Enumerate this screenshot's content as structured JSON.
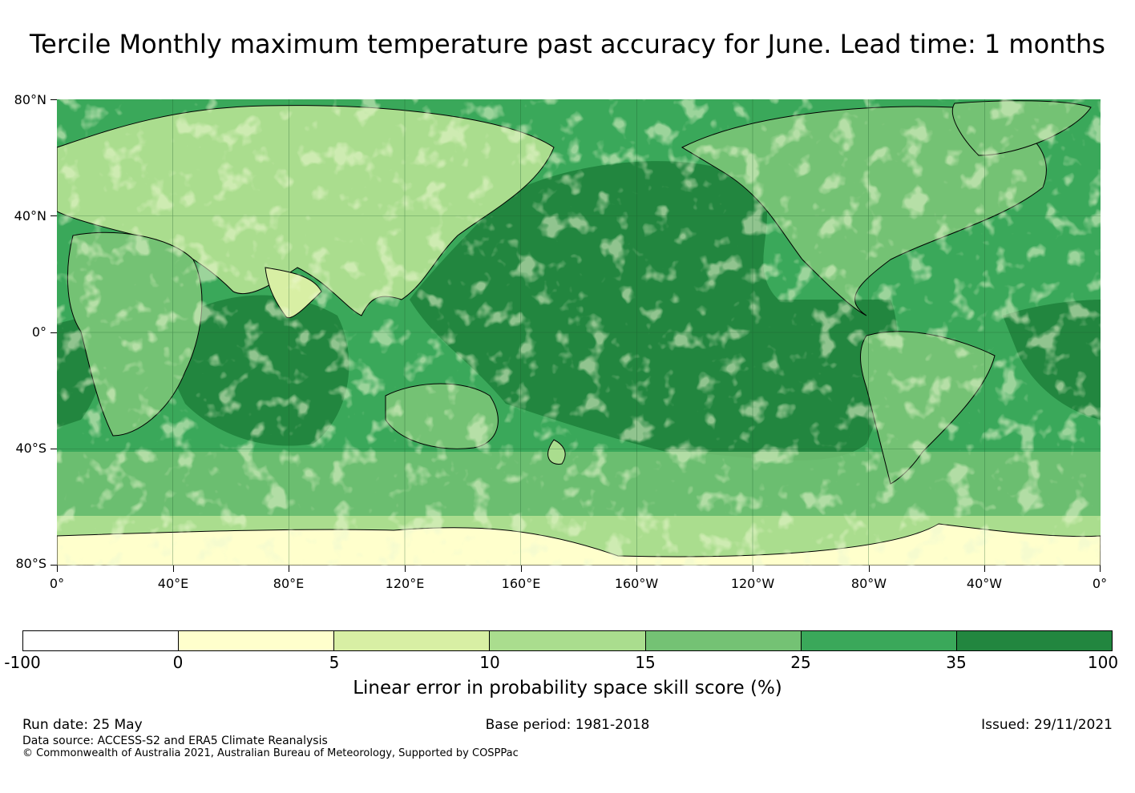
{
  "title": "Tercile Monthly maximum temperature past accuracy for June. Lead time: 1 months",
  "map": {
    "lat_labels": [
      "80°N",
      "40°N",
      "0°",
      "40°S",
      "80°S"
    ],
    "lon_labels": [
      "0°",
      "40°E",
      "80°E",
      "120°E",
      "160°E",
      "160°W",
      "120°W",
      "80°W",
      "40°W",
      "0°"
    ],
    "lat_range": [
      -80,
      80
    ],
    "lon_range": [
      0,
      360
    ],
    "gridlines": true,
    "colors": {
      "ocean_deep": "#22863f",
      "ocean_mid": "#3aa85a",
      "land_mid": "#74c274",
      "land_light": "#aadd8e",
      "land_pale": "#d8efa4",
      "land_lightest": "#ffffcc",
      "coast": "#000000"
    }
  },
  "colorbar": {
    "tick_labels": [
      "-100",
      "0",
      "5",
      "10",
      "15",
      "25",
      "35",
      "100"
    ],
    "colors": [
      "#ffffff",
      "#ffffcc",
      "#d8efa4",
      "#aadd8e",
      "#74c274",
      "#3aa85a",
      "#22863f"
    ],
    "label": "Linear error in probability space skill score (%)"
  },
  "footer": {
    "run_date": "Run date: 25 May",
    "base_period": "Base period: 1981-2018",
    "issued": "Issued: 29/11/2021",
    "data_source": "Data source: ACCESS-S2 and ERA5 Climate Reanalysis",
    "copyright": "© Commonwealth of Australia 2021, Australian Bureau of Meteorology, Supported by COSPPac"
  }
}
